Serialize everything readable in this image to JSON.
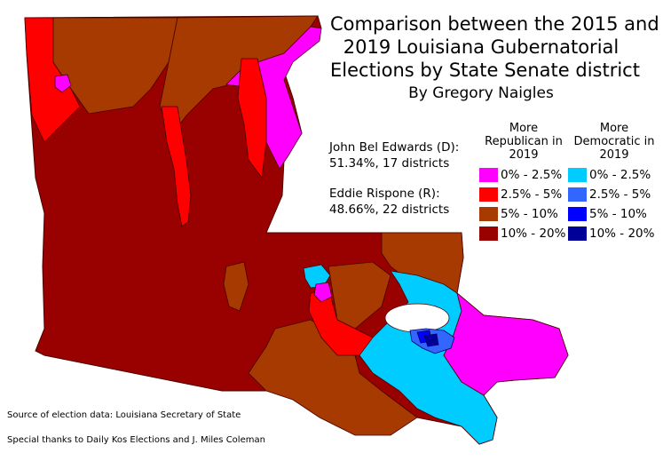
{
  "title": {
    "lines": [
      "Comparison between the 2015 and",
      "2019 Louisiana Gubernatorial",
      "Elections by State Senate district"
    ],
    "byline": "By Gregory Naigles"
  },
  "results": {
    "edwards": [
      "John Bel Edwards (D):",
      "51.34%, 17 districts"
    ],
    "rispone": [
      "Eddie Rispone (R):",
      "48.66%, 22 districts"
    ]
  },
  "legend": {
    "republican": {
      "heading": [
        "More",
        "Republican in",
        "2019"
      ],
      "items": [
        {
          "label": "0% - 2.5%",
          "color": "#ff00ff"
        },
        {
          "label": "2.5% - 5%",
          "color": "#ff0000"
        },
        {
          "label": "5% - 10%",
          "color": "#a63a00"
        },
        {
          "label": "10% - 20%",
          "color": "#990000"
        }
      ]
    },
    "democratic": {
      "heading": [
        "More",
        "Democratic in",
        "2019"
      ],
      "items": [
        {
          "label": "0% - 2.5%",
          "color": "#00ccff"
        },
        {
          "label": "2.5% - 5%",
          "color": "#3366ff"
        },
        {
          "label": "5% - 10%",
          "color": "#0000ff"
        },
        {
          "label": "10% - 20%",
          "color": "#000099"
        }
      ]
    }
  },
  "footer": {
    "source": "Source of election data: Louisiana Secretary of State",
    "thanks": "Special thanks to Daily Kos Elections and J. Miles Coleman"
  }
}
